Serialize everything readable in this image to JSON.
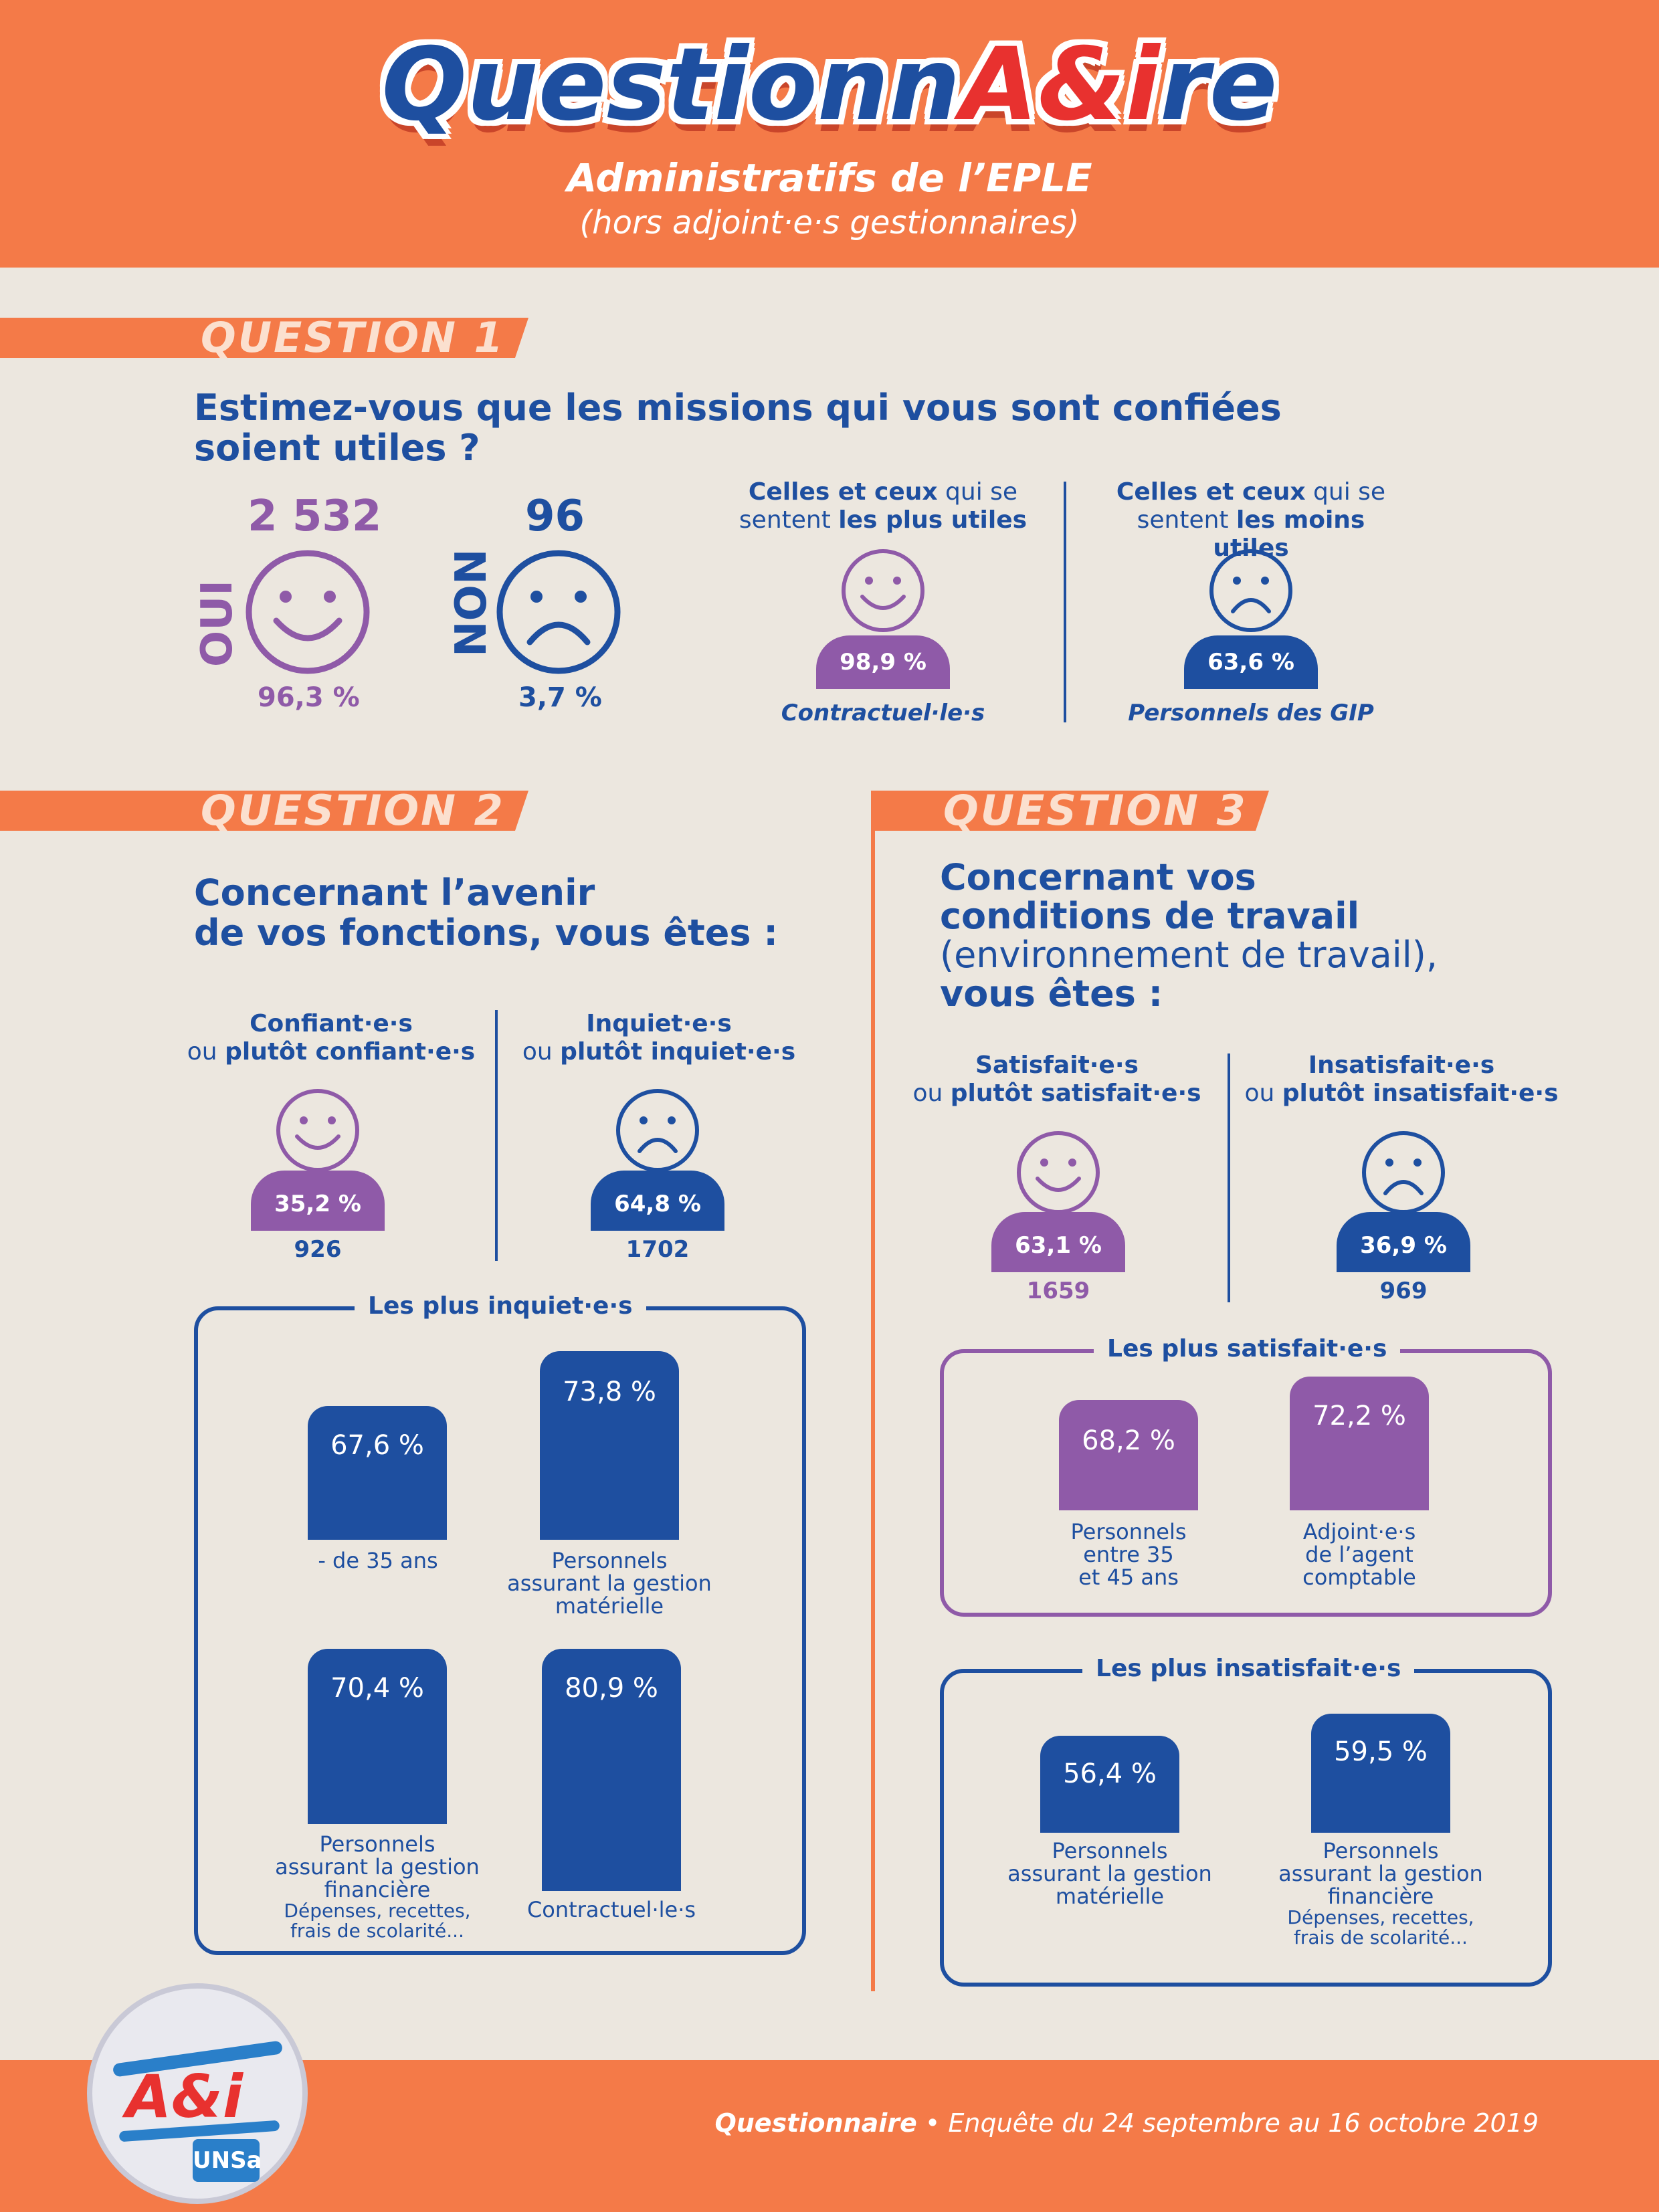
{
  "header": {
    "logo_part1": "Questionn",
    "logo_part2": "A&i",
    "logo_part3": "re",
    "subtitle": "Administratifs de l’EPLE",
    "subtitle2": "(hors adjoint·e·s gestionnaires)"
  },
  "q1": {
    "label": "QUESTION 1",
    "question": "Estimez-vous que les missions qui vous sont confiées soient utiles ?",
    "oui_label": "OUI",
    "oui_count": "2 532",
    "oui_pct": "96,3 %",
    "non_label": "NON",
    "non_count": "96",
    "non_pct": "3,7 %",
    "most_label_a": "Celles et ceux",
    "most_label_b": "qui se",
    "most_label_c": "sentent",
    "most_label_d": "les plus utiles",
    "most_pct": "98,9 %",
    "most_group": "Contractuel·le·s",
    "least_label_a": "Celles et ceux",
    "least_label_b": "qui se",
    "least_label_c": "sentent",
    "least_label_d": "les moins utiles",
    "least_pct": "63,6 %",
    "least_group": "Personnels des GIP"
  },
  "q2": {
    "label": "QUESTION 2",
    "question_l1": "Concernant l’avenir",
    "question_l2": "de vos fonctions, vous êtes :",
    "pos_l1": "Confiant·e·s",
    "pos_l2a": "ou",
    "pos_l2b": "plutôt confiant·e·s",
    "pos_pct": "35,2 %",
    "pos_count": "926",
    "neg_l1": "Inquiet·e·s",
    "neg_l2a": "ou",
    "neg_l2b": "plutôt inquiet·e·s",
    "neg_pct": "64,8 %",
    "neg_count": "1702",
    "box_title": "Les plus inquiet·e·s",
    "bars": [
      {
        "value": "67,6 %",
        "label": "- de 35 ans"
      },
      {
        "value": "73,8 %",
        "label_l1": "Personnels",
        "label_l2": "assurant la gestion",
        "label_l3": "matérielle"
      },
      {
        "value": "70,4 %",
        "label_l1": "Personnels",
        "label_l2": "assurant la gestion",
        "label_l3": "financière",
        "note_l1": "Dépenses, recettes,",
        "note_l2": "frais de scolarité..."
      },
      {
        "value": "80,9 %",
        "label": "Contractuel·le·s"
      }
    ]
  },
  "q3": {
    "label": "QUESTION 3",
    "question_l1": "Concernant vos",
    "question_l2": "conditions de travail",
    "question_l3": "(environnement de travail),",
    "question_l4": "vous êtes :",
    "pos_l1": "Satisfait·e·s",
    "pos_l2a": "ou",
    "pos_l2b": "plutôt satisfait·e·s",
    "pos_pct": "63,1 %",
    "pos_count": "1659",
    "neg_l1": "Insatisfait·e·s",
    "neg_l2a": "ou",
    "neg_l2b": "plutôt insatisfait·e·s",
    "neg_pct": "36,9 %",
    "neg_count": "969",
    "sat_title": "Les plus satisfait·e·s",
    "sat_bars": [
      {
        "value": "68,2 %",
        "label_l1": "Personnels",
        "label_l2": "entre 35",
        "label_l3": "et 45 ans"
      },
      {
        "value": "72,2 %",
        "label_l1": "Adjoint·e·s",
        "label_l2": "de l’agent",
        "label_l3": "comptable"
      }
    ],
    "insat_title": "Les plus insatisfait·e·s",
    "insat_bars": [
      {
        "value": "56,4 %",
        "label_l1": "Personnels",
        "label_l2": "assurant la gestion",
        "label_l3": "matérielle"
      },
      {
        "value": "59,5 %",
        "label_l1": "Personnels",
        "label_l2": "assurant la gestion",
        "label_l3": "financière",
        "note_l1": "Dépenses, recettes,",
        "note_l2": "frais de scolarité..."
      }
    ]
  },
  "footer": {
    "logo_text": "A&i",
    "logo_sub": "UNSa",
    "title": "Questionnaire",
    "text": "• Enquête du 24 septembre au 16 octobre 2019"
  },
  "colors": {
    "orange": "#f47a48",
    "blue": "#1e4fa0",
    "purple": "#8f5aa8",
    "background": "#ece7df"
  }
}
